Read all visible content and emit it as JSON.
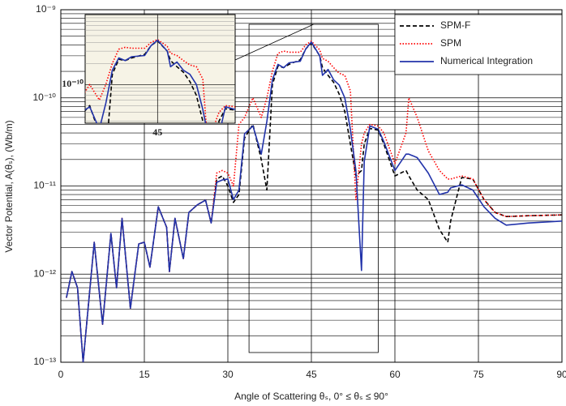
{
  "chart_data": {
    "type": "line",
    "xlabel": "Angle of Scattering θₛ, 0° ≤ θₛ ≤ 90°",
    "ylabel": "Vector Potential, A(θₛ), (Wb/m)",
    "log_y": true,
    "grid": true,
    "minor_grid": true,
    "legend": "upper right",
    "xlim": [
      0,
      90
    ],
    "ylim": [
      1e-13,
      1e-09
    ],
    "xticks": [
      0,
      15,
      30,
      45,
      60,
      75,
      90
    ],
    "yticks": [
      {
        "value": 1e-13,
        "label": "10⁻¹³"
      },
      {
        "value": 1e-12,
        "label": "10⁻¹²"
      },
      {
        "value": 1e-11,
        "label": "10⁻¹¹"
      },
      {
        "value": 1e-10,
        "label": "10⁻¹⁰"
      },
      {
        "value": 1e-09,
        "label": "10⁻⁹"
      }
    ],
    "x": [
      1,
      2,
      3,
      4,
      6,
      7.5,
      9,
      10,
      11,
      12.5,
      14,
      15,
      16,
      17.5,
      19,
      19.5,
      20.5,
      22,
      23,
      24.5,
      26,
      27,
      28,
      29,
      30,
      31,
      32,
      33,
      34.5,
      36,
      37,
      38,
      39,
      40,
      41,
      43,
      44,
      45,
      46.5,
      47,
      48,
      49,
      50,
      51,
      52,
      53,
      54,
      54.5,
      55.5,
      57,
      58,
      60,
      62,
      62.5,
      64,
      66,
      68,
      69.5,
      70,
      72,
      74,
      76,
      78,
      80,
      84,
      90
    ],
    "series": [
      {
        "name": "SPM-F",
        "color": "#000000",
        "style": "dashed",
        "values": [
          5.4e-13,
          1.07e-12,
          7e-13,
          1e-13,
          2.3e-12,
          2.7e-13,
          2.9e-12,
          7e-13,
          4.3e-12,
          4.1e-13,
          2.2e-12,
          2.3e-12,
          1.2e-12,
          5.8e-12,
          3.4e-12,
          1.07e-12,
          4.3e-12,
          1.5e-12,
          5e-12,
          6.1e-12,
          6.9e-12,
          3.8e-12,
          1.2e-11,
          1.3e-11,
          1e-11,
          6.5e-12,
          8e-12,
          3.5e-11,
          5e-11,
          2e-11,
          9e-12,
          1.4e-10,
          2.3e-10,
          2.2e-10,
          2.4e-10,
          2.7e-10,
          3.6e-10,
          4.2e-10,
          3e-10,
          2.2e-10,
          1.8e-10,
          1.5e-10,
          1.1e-10,
          7e-11,
          3e-11,
          1.3e-11,
          1.5e-11,
          3e-11,
          4.5e-11,
          4.3e-11,
          3e-11,
          1.3e-11,
          1.5e-11,
          1.3e-11,
          9e-12,
          7e-12,
          3.2e-12,
          2.3e-12,
          4e-12,
          1.25e-11,
          1.2e-11,
          7e-12,
          5e-12,
          4.5e-12,
          4.6e-12,
          4.7e-12
        ]
      },
      {
        "name": "SPM",
        "color": "#ff0000",
        "style": "dotted",
        "values": [
          5.4e-13,
          1.07e-12,
          7e-13,
          1e-13,
          2.3e-12,
          2.7e-13,
          2.9e-12,
          7e-13,
          4.3e-12,
          4.1e-13,
          2.2e-12,
          2.3e-12,
          1.2e-12,
          5.8e-12,
          3.4e-12,
          1.07e-12,
          4.3e-12,
          1.5e-12,
          5e-12,
          6.1e-12,
          6.9e-12,
          3.8e-12,
          1.4e-11,
          1.5e-11,
          1.4e-11,
          1e-11,
          5e-11,
          6e-11,
          1e-10,
          6e-11,
          1e-10,
          2e-10,
          3.2e-10,
          3.4e-10,
          3.3e-10,
          3.3e-10,
          4e-10,
          4.4e-10,
          3.5e-10,
          2.8e-10,
          2.6e-10,
          2.2e-10,
          1.9e-10,
          1.8e-10,
          1.2e-10,
          7e-12,
          3e-11,
          4e-11,
          5e-11,
          4.8e-11,
          4e-11,
          1.8e-11,
          4e-11,
          1e-10,
          6e-11,
          2.5e-11,
          1.5e-11,
          1.2e-11,
          1.2e-11,
          1.3e-11,
          1.2e-11,
          7e-12,
          5e-12,
          4.5e-12,
          4.6e-12,
          4.7e-12
        ]
      },
      {
        "name": "Numerical Integration",
        "color": "#2233aa",
        "style": "solid",
        "values": [
          5.4e-13,
          1.07e-12,
          7e-13,
          1e-13,
          2.3e-12,
          2.7e-13,
          2.9e-12,
          7e-13,
          4.3e-12,
          4.1e-13,
          2.2e-12,
          2.3e-12,
          1.2e-12,
          5.8e-12,
          3.4e-12,
          1.07e-12,
          4.3e-12,
          1.5e-12,
          5e-12,
          6.1e-12,
          6.9e-12,
          3.8e-12,
          1.1e-11,
          1.17e-11,
          1.2e-11,
          7e-12,
          9e-12,
          3.9e-11,
          4.8e-11,
          2.3e-11,
          5.4e-11,
          1.6e-10,
          2.4e-10,
          2.2e-10,
          2.5e-10,
          2.6e-10,
          3.6e-10,
          4.3e-10,
          3e-10,
          1.8e-10,
          2.1e-10,
          1.6e-10,
          1.4e-10,
          1e-10,
          4.4e-11,
          1.5e-11,
          1.1e-12,
          1.9e-11,
          4.8e-11,
          4.4e-11,
          3.2e-11,
          1.5e-11,
          2.3e-11,
          2.3e-11,
          2.1e-11,
          1.4e-11,
          8e-12,
          8.5e-12,
          9.5e-12,
          1.03e-11,
          9e-12,
          5.8e-12,
          4.3e-12,
          3.6e-12,
          3.8e-12,
          4e-12
        ]
      }
    ],
    "inset": {
      "xlim": [
        33.8,
        57
      ],
      "ylim": [
        2.8e-11,
        1e-09
      ],
      "xticks": [
        45
      ],
      "yticks": [
        {
          "value": 1e-10,
          "label": "10⁻¹⁰"
        }
      ]
    }
  }
}
